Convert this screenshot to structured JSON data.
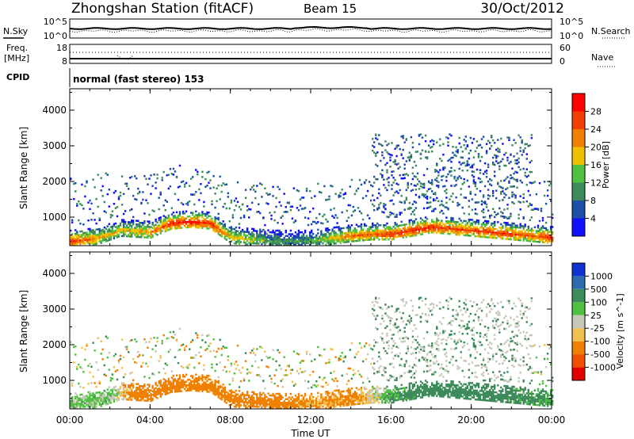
{
  "header": {
    "title": "Zhongshan Station (fitACF)",
    "beam": "Beam 15",
    "date": "30/Oct/2012"
  },
  "summary_panels": {
    "nsky_label": "N.Sky",
    "nsky_ticks": [
      "10^5",
      "10^0"
    ],
    "nsearch_label": "N.Search",
    "nsearch_ticks": [
      "10^5",
      "10^0"
    ],
    "freq_label_1": "Freq.",
    "freq_label_2": "[MHz]",
    "freq_ticks": [
      "18",
      "8"
    ],
    "nave_label": "Nave",
    "nave_ticks": [
      "60",
      "0"
    ],
    "cpid_label": "CPID",
    "cpid_text": "normal (fast stereo) 153"
  },
  "colors": {
    "power": [
      "#1010ff",
      "#1d4fa8",
      "#3d8a5a",
      "#50c040",
      "#f0c000",
      "#f08000",
      "#f04000",
      "#ff0000"
    ],
    "velocity": [
      "#e00000",
      "#f05000",
      "#f08000",
      "#f0c050",
      "#c8c8b8",
      "#50c040",
      "#3d8a5a",
      "#2d6ab0",
      "#1030d0"
    ]
  },
  "chart_data": [
    {
      "type": "heatmap",
      "panel": "power",
      "ylabel": "Slant Range [km]",
      "yticks": [
        "1000",
        "2000",
        "3000",
        "4000"
      ],
      "ylim": [
        200,
        4600
      ],
      "colorbar_label": "Power [dB]",
      "colorbar_ticks": [
        "4",
        "8",
        "12",
        "16",
        "20",
        "24",
        "28"
      ],
      "colorbar_range": [
        0,
        32
      ],
      "series": [
        {
          "x": [
            "00:00",
            "01:00",
            "01:30",
            "02:30",
            "04:00",
            "05:00",
            "06:00",
            "07:00",
            "08:00",
            "10:00",
            "11:00",
            "12:00",
            "14:00",
            "15:00",
            "16:00",
            "17:00",
            "18:00",
            "19:00",
            "20:00",
            "21:00",
            "22:00",
            "23:00",
            "24:00"
          ]
        },
        {
          "near_range_km": [
            300,
            350,
            400,
            600,
            550,
            800,
            850,
            800,
            400,
            300,
            300,
            300,
            450,
            500,
            500,
            600,
            700,
            650,
            600,
            550,
            500,
            450,
            400
          ]
        },
        {
          "peak_power_dB": [
            28,
            24,
            20,
            18,
            22,
            28,
            30,
            28,
            20,
            12,
            10,
            12,
            24,
            24,
            28,
            28,
            28,
            26,
            26,
            28,
            26,
            24,
            28
          ]
        }
      ]
    },
    {
      "type": "heatmap",
      "panel": "velocity",
      "ylabel": "Slant Range [km]",
      "yticks": [
        "1000",
        "2000",
        "3000",
        "4000"
      ],
      "ylim": [
        200,
        4600
      ],
      "xlabel": "Time UT",
      "xticks": [
        "00:00",
        "04:00",
        "08:00",
        "12:00",
        "16:00",
        "20:00",
        "00:00"
      ],
      "colorbar_label": "Velocity [m s^-1]",
      "colorbar_ticks": [
        "1000",
        "500",
        "100",
        "25",
        "-25",
        "-100",
        "-500",
        "-1000"
      ],
      "series": [
        {
          "x": [
            "00:00",
            "02:00",
            "04:00",
            "06:00",
            "08:00",
            "10:00",
            "12:00",
            "14:00",
            "16:00",
            "18:00",
            "20:00",
            "22:00",
            "24:00"
          ]
        },
        {
          "dominant_velocity_ms": [
            50,
            50,
            -300,
            -300,
            -200,
            -200,
            -100,
            -150,
            100,
            200,
            200,
            150,
            100
          ]
        }
      ]
    }
  ]
}
